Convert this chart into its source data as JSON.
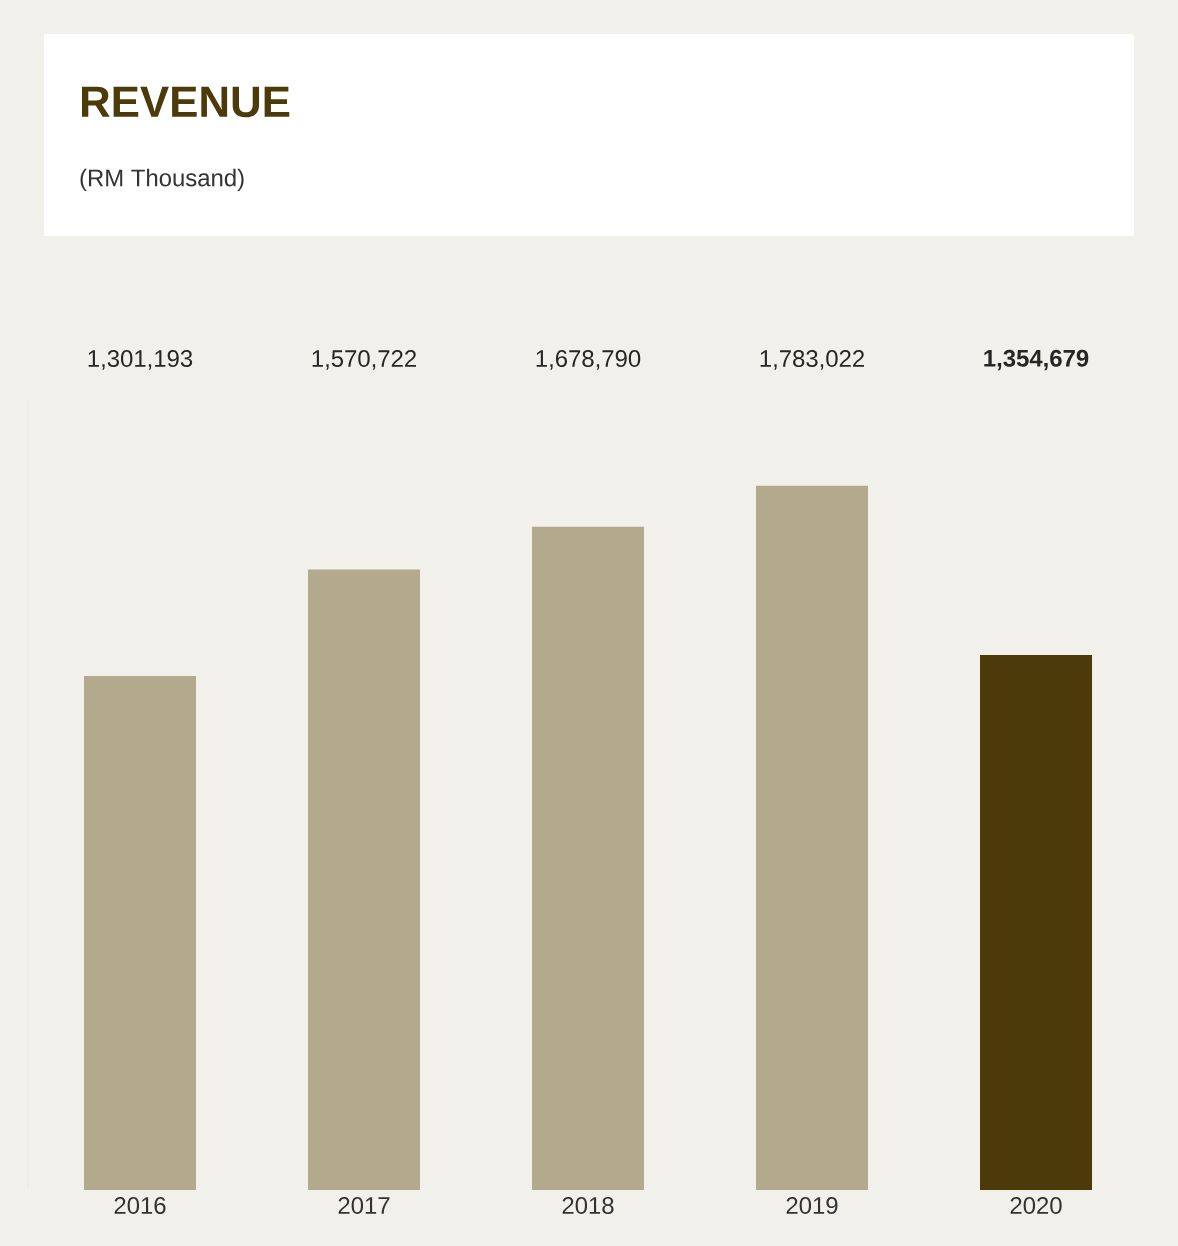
{
  "chart_data": {
    "type": "bar",
    "title": "REVENUE",
    "subtitle": "(RM Thousand)",
    "categories": [
      "2016",
      "2017",
      "2018",
      "2019",
      "2020"
    ],
    "values": [
      1301193,
      1570722,
      1678790,
      1783022,
      1354679
    ],
    "value_labels": [
      "1,301,193",
      "1,570,722",
      "1,678,790",
      "1,783,022",
      "**1,354,679**"
    ],
    "colors": [
      "#b3a98d",
      "#b3a98d",
      "#b3a98d",
      "#b3a98d",
      "#4d3a0a"
    ],
    "ylim": [
      0,
      2000000
    ]
  }
}
